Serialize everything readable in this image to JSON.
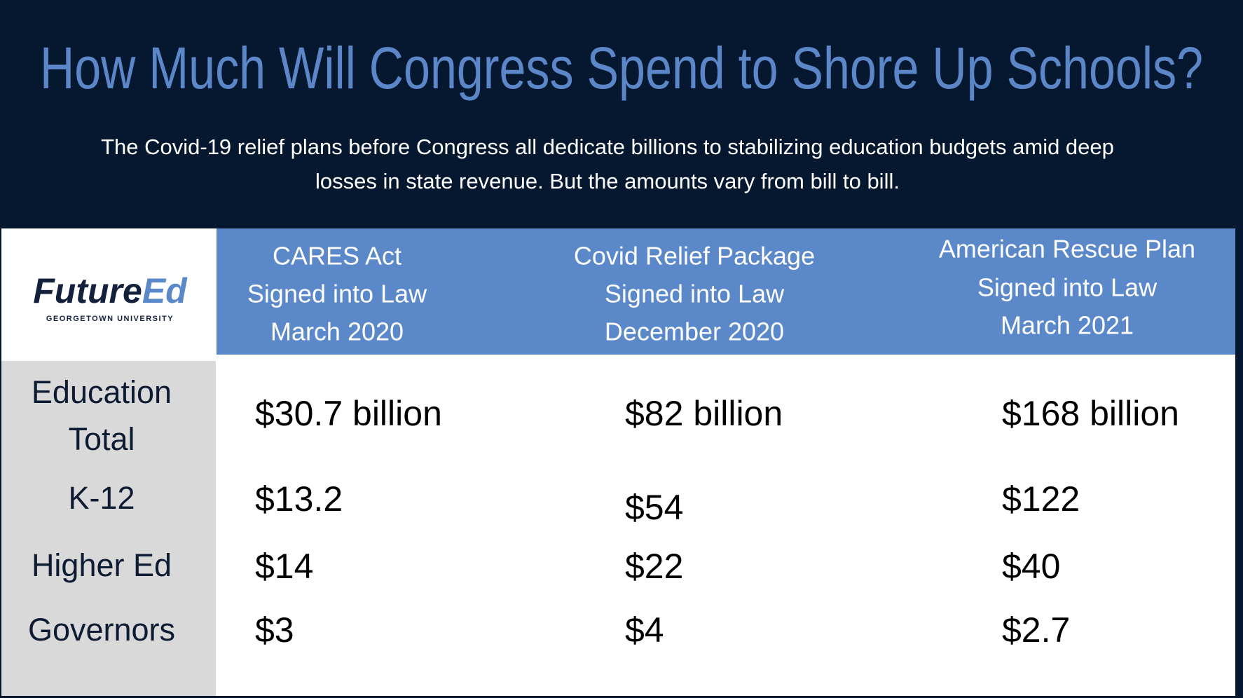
{
  "header": {
    "title": "How Much Will Congress Spend to Shore Up Schools?",
    "subtitle": [
      "The Covid-19 relief plans before Congress all dedicate billions to stabilizing education budgets amid deep",
      "losses in state revenue. But the amounts vary from bill to bill."
    ]
  },
  "logo": {
    "part1": "Future",
    "part2": "Ed",
    "org": "GEORGETOWN UNIVERSITY"
  },
  "table": {
    "columns": [
      [
        "CARES Act",
        "Signed into Law",
        "March 2020"
      ],
      [
        "Covid Relief  Package",
        "Signed into Law",
        "December 2020"
      ],
      [
        "American Rescue Plan",
        "Signed into Law",
        "March 2021"
      ]
    ],
    "rows": [
      {
        "label": [
          "Education",
          "Total"
        ],
        "cells": [
          "$30.7 billion",
          "$82 billion",
          "$168 billion"
        ]
      },
      {
        "label": [
          "K-12"
        ],
        "cells": [
          "$13.2",
          "$54",
          "$122"
        ]
      },
      {
        "label": [
          "Higher Ed"
        ],
        "cells": [
          "$14",
          "$22",
          "$40"
        ]
      },
      {
        "label": [
          "Governors"
        ],
        "cells": [
          "$3",
          "$4",
          "$2.7"
        ]
      }
    ]
  }
}
